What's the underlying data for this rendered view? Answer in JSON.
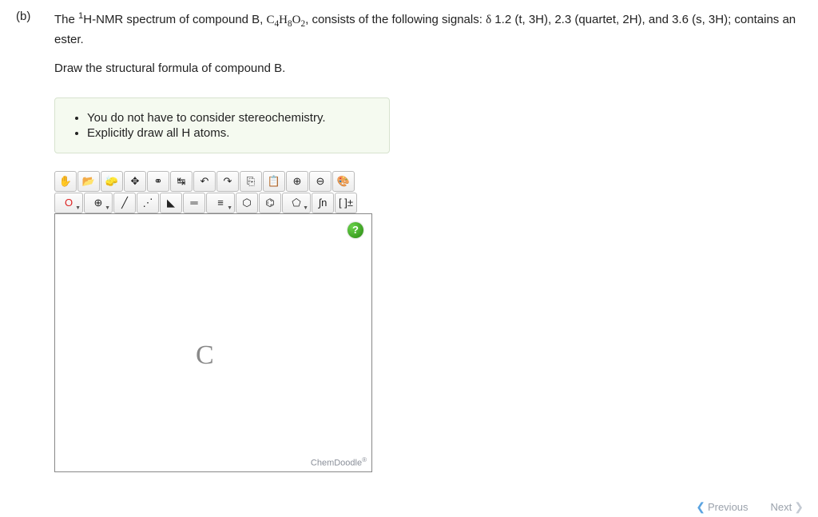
{
  "part_label": "(b)",
  "question": {
    "pre": "The ",
    "sup": "1",
    "mid1": "H-NMR spectrum of compound B, ",
    "formula_pre": "C",
    "formula_sub1": "4",
    "formula_mid": "H",
    "formula_sub2": "8",
    "formula_mid2": "O",
    "formula_sub3": "2",
    "mid2": ", consists of the following signals: ",
    "delta": "δ",
    "signals": " 1.2 (t, 3H), 2.3 (quartet, 2H), and 3.6 (s, 3H); contains an ester.",
    "prompt2": "Draw the structural formula of compound B."
  },
  "hints": [
    "You do not have to consider stereochemistry.",
    "Explicitly draw all H atoms."
  ],
  "toolbar": {
    "row1": [
      {
        "name": "hand-icon",
        "glyph": "✋"
      },
      {
        "name": "open-icon",
        "glyph": "📂"
      },
      {
        "name": "erase-icon",
        "glyph": "🧽"
      },
      {
        "name": "center-icon",
        "glyph": "✥"
      },
      {
        "name": "clean-icon",
        "glyph": "⚭"
      },
      {
        "name": "flip-icon",
        "glyph": "↹"
      },
      {
        "name": "undo-icon",
        "glyph": "↶"
      },
      {
        "name": "redo-icon",
        "glyph": "↷"
      },
      {
        "name": "copy-icon",
        "glyph": "⎘"
      },
      {
        "name": "paste-icon",
        "glyph": "📋"
      },
      {
        "name": "zoomin-icon",
        "glyph": "⊕"
      },
      {
        "name": "zoomout-icon",
        "glyph": "⊖"
      },
      {
        "name": "color-icon",
        "glyph": "🎨"
      }
    ],
    "row2": [
      {
        "name": "element-o-button",
        "glyph": "O",
        "dd": true,
        "color": "#d22"
      },
      {
        "name": "charge-icon",
        "glyph": "⊕",
        "dd": true
      },
      {
        "name": "single-bond-icon",
        "glyph": "╱"
      },
      {
        "name": "dashed-bond-icon",
        "glyph": "⋰"
      },
      {
        "name": "wedge-bond-icon",
        "glyph": "◣"
      },
      {
        "name": "double-bond-icon",
        "glyph": "═"
      },
      {
        "name": "triple-bond-icon",
        "glyph": "≡",
        "dd": true
      },
      {
        "name": "cyclohexane-icon",
        "glyph": "⬡"
      },
      {
        "name": "benzene-icon",
        "glyph": "⌬"
      },
      {
        "name": "cyclopentane-icon",
        "glyph": "⬠",
        "dd": true
      },
      {
        "name": "chain-icon",
        "glyph": "∫n"
      },
      {
        "name": "bracket-icon",
        "glyph": "[ ]±"
      }
    ]
  },
  "canvas": {
    "placeholder_letter": "C",
    "brand": "ChemDoodle",
    "brand_mark": "®",
    "help_label": "?"
  },
  "nav": {
    "prev": "Previous",
    "next": "Next"
  }
}
